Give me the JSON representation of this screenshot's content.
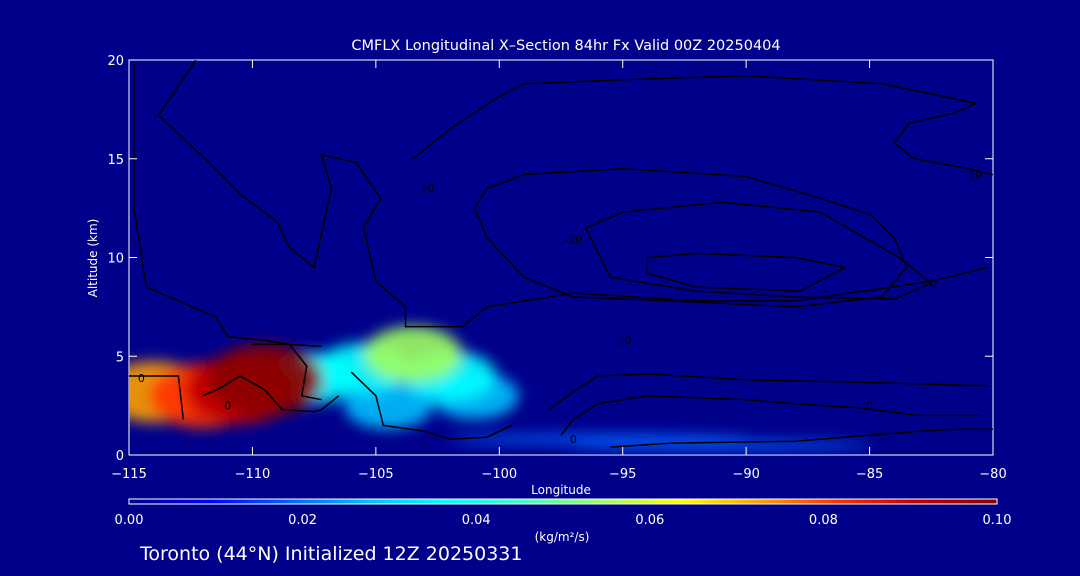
{
  "chart_data": {
    "type": "heatmap",
    "title": "CMFLX Longitudinal X–Section 84hr  Fx Valid 00Z 20250404",
    "xlabel": "Longitude",
    "ylabel": "Altitude (km)",
    "xlim": [
      -115,
      -80
    ],
    "ylim": [
      0,
      20
    ],
    "x_ticks": [
      -115,
      -110,
      -105,
      -100,
      -95,
      -90,
      -85,
      -80
    ],
    "x_tick_labels": [
      "−115",
      "−110",
      "−105",
      "−100",
      "−95",
      "−90",
      "−85",
      "−80"
    ],
    "y_ticks": [
      0,
      5,
      10,
      15,
      20
    ],
    "y_tick_labels": [
      "0",
      "5",
      "10",
      "15",
      "20"
    ],
    "colorbar": {
      "min": 0.0,
      "max": 0.1,
      "ticks": [
        0.0,
        0.02,
        0.04,
        0.06,
        0.08,
        0.1
      ],
      "tick_labels": [
        "0.00",
        "0.02",
        "0.04",
        "0.06",
        "0.08",
        "0.10"
      ],
      "units": "(kg/m²/s)",
      "colors": [
        "#00008b",
        "#0000ff",
        "#0060ff",
        "#00c0ff",
        "#00ffff",
        "#40ffc0",
        "#a0ff60",
        "#ffff00",
        "#ffa000",
        "#ff3000",
        "#c00000",
        "#8b0000"
      ]
    },
    "plumes": [
      {
        "lon": -114.0,
        "alt": 3.2,
        "value": 0.07
      },
      {
        "lon": -112.0,
        "alt": 3.0,
        "value": 0.08
      },
      {
        "lon": -109.5,
        "alt": 3.8,
        "value": 0.1
      },
      {
        "lon": -110.5,
        "alt": 3.3,
        "value": 0.09
      },
      {
        "lon": -107.5,
        "alt": 3.9,
        "value": 0.04
      },
      {
        "lon": -105.5,
        "alt": 4.4,
        "value": 0.04
      },
      {
        "lon": -103.5,
        "alt": 5.1,
        "value": 0.055
      },
      {
        "lon": -102.0,
        "alt": 4.0,
        "value": 0.04
      },
      {
        "lon": -101.0,
        "alt": 3.0,
        "value": 0.03
      },
      {
        "lon": -104.5,
        "alt": 2.5,
        "value": 0.03
      },
      {
        "lon": -96.0,
        "alt": 0.8,
        "value": 0.02
      },
      {
        "lon": -91.0,
        "alt": 0.5,
        "value": 0.015
      }
    ],
    "contour_labels": [
      {
        "text": "-10",
        "lon": -103.0,
        "alt": 13.5
      },
      {
        "text": "-20",
        "lon": -97.0,
        "alt": 10.9
      },
      {
        "text": "-10",
        "lon": -80.8,
        "alt": 14.2
      },
      {
        "text": "0",
        "lon": -82.4,
        "alt": 8.7
      },
      {
        "text": "-10",
        "lon": -95.0,
        "alt": 5.8
      },
      {
        "text": "0",
        "lon": -114.5,
        "alt": 3.9
      },
      {
        "text": "0",
        "lon": -85.0,
        "alt": 2.5
      },
      {
        "text": "0",
        "lon": -97.0,
        "alt": 0.8
      },
      {
        "text": "0",
        "lon": -111.0,
        "alt": 2.5
      }
    ]
  },
  "footer": {
    "text": "Toronto (44°N) Initialized 12Z 20250331"
  }
}
